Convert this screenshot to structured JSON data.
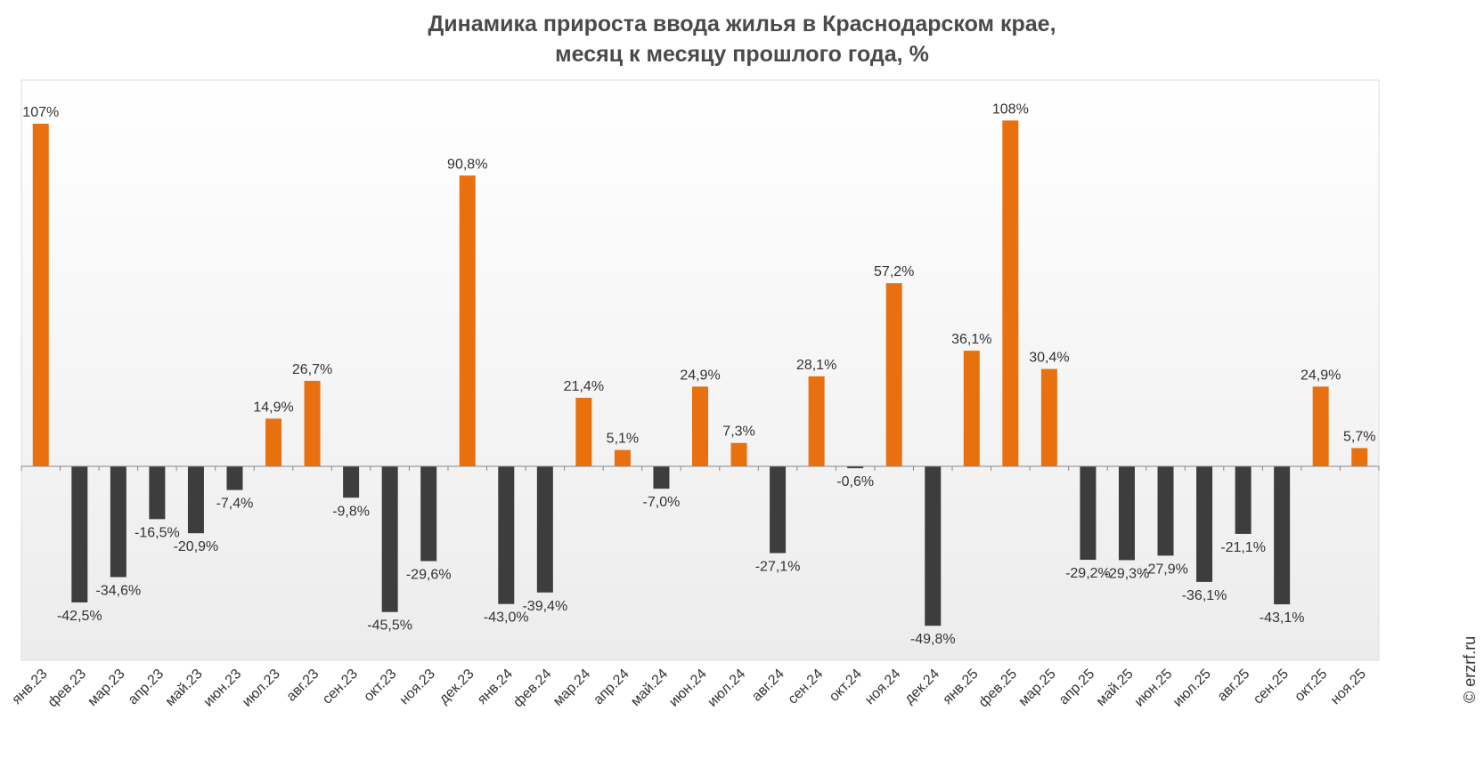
{
  "title_line1": "Динамика прироста ввода жилья в Краснодарском крае,",
  "title_line2": "месяц к месяцу прошлого года, %",
  "credit": "© erzrf.ru",
  "colors": {
    "positive": "#e8700f",
    "negative": "#3d3d3d",
    "axis": "#888888",
    "grid": "#dddddd",
    "bg_top": "#ffffff",
    "bg_bottom": "#ececec"
  },
  "chart_data": {
    "type": "bar",
    "ylim": [
      -58,
      120
    ],
    "grid": false,
    "legend": "none",
    "categories": [
      "янв.23",
      "фев.23",
      "мар.23",
      "апр.23",
      "май.23",
      "июн.23",
      "июл.23",
      "авг.23",
      "сен.23",
      "окт.23",
      "ноя.23",
      "дек.23",
      "янв.24",
      "фев.24",
      "мар.24",
      "апр.24",
      "май.24",
      "июн.24",
      "июл.24",
      "авг.24",
      "сен.24",
      "окт.24",
      "ноя.24",
      "дек.24",
      "янв.25",
      "фев.25",
      "мар.25",
      "апр.25",
      "май.25",
      "июн.25",
      "июл.25",
      "авг.25",
      "сен.25",
      "окт.25",
      "ноя.25"
    ],
    "values": [
      107,
      -42.5,
      -34.6,
      -16.5,
      -20.9,
      -7.4,
      14.9,
      26.7,
      -9.8,
      -45.5,
      -29.6,
      90.8,
      -43.0,
      -39.4,
      21.4,
      5.1,
      -7.0,
      24.9,
      7.3,
      -27.1,
      28.1,
      -0.6,
      57.2,
      -49.8,
      36.1,
      108,
      30.4,
      -29.2,
      -29.3,
      -27.9,
      -36.1,
      -21.1,
      -43.1,
      24.9,
      5.7
    ],
    "labels": [
      "107%",
      "-42,5%",
      "-34,6%",
      "-16,5%",
      "-20,9%",
      "-7,4%",
      "14,9%",
      "26,7%",
      "-9,8%",
      "-45,5%",
      "-29,6%",
      "90,8%",
      "-43,0%",
      "-39,4%",
      "21,4%",
      "5,1%",
      "-7,0%",
      "24,9%",
      "7,3%",
      "-27,1%",
      "28,1%",
      "-0,6%",
      "57,2%",
      "-49,8%",
      "36,1%",
      "108%",
      "30,4%",
      "-29,2%",
      "-29,3%",
      "-27,9%",
      "-36,1%",
      "-21,1%",
      "-43,1%",
      "24,9%",
      "5,7%"
    ]
  }
}
